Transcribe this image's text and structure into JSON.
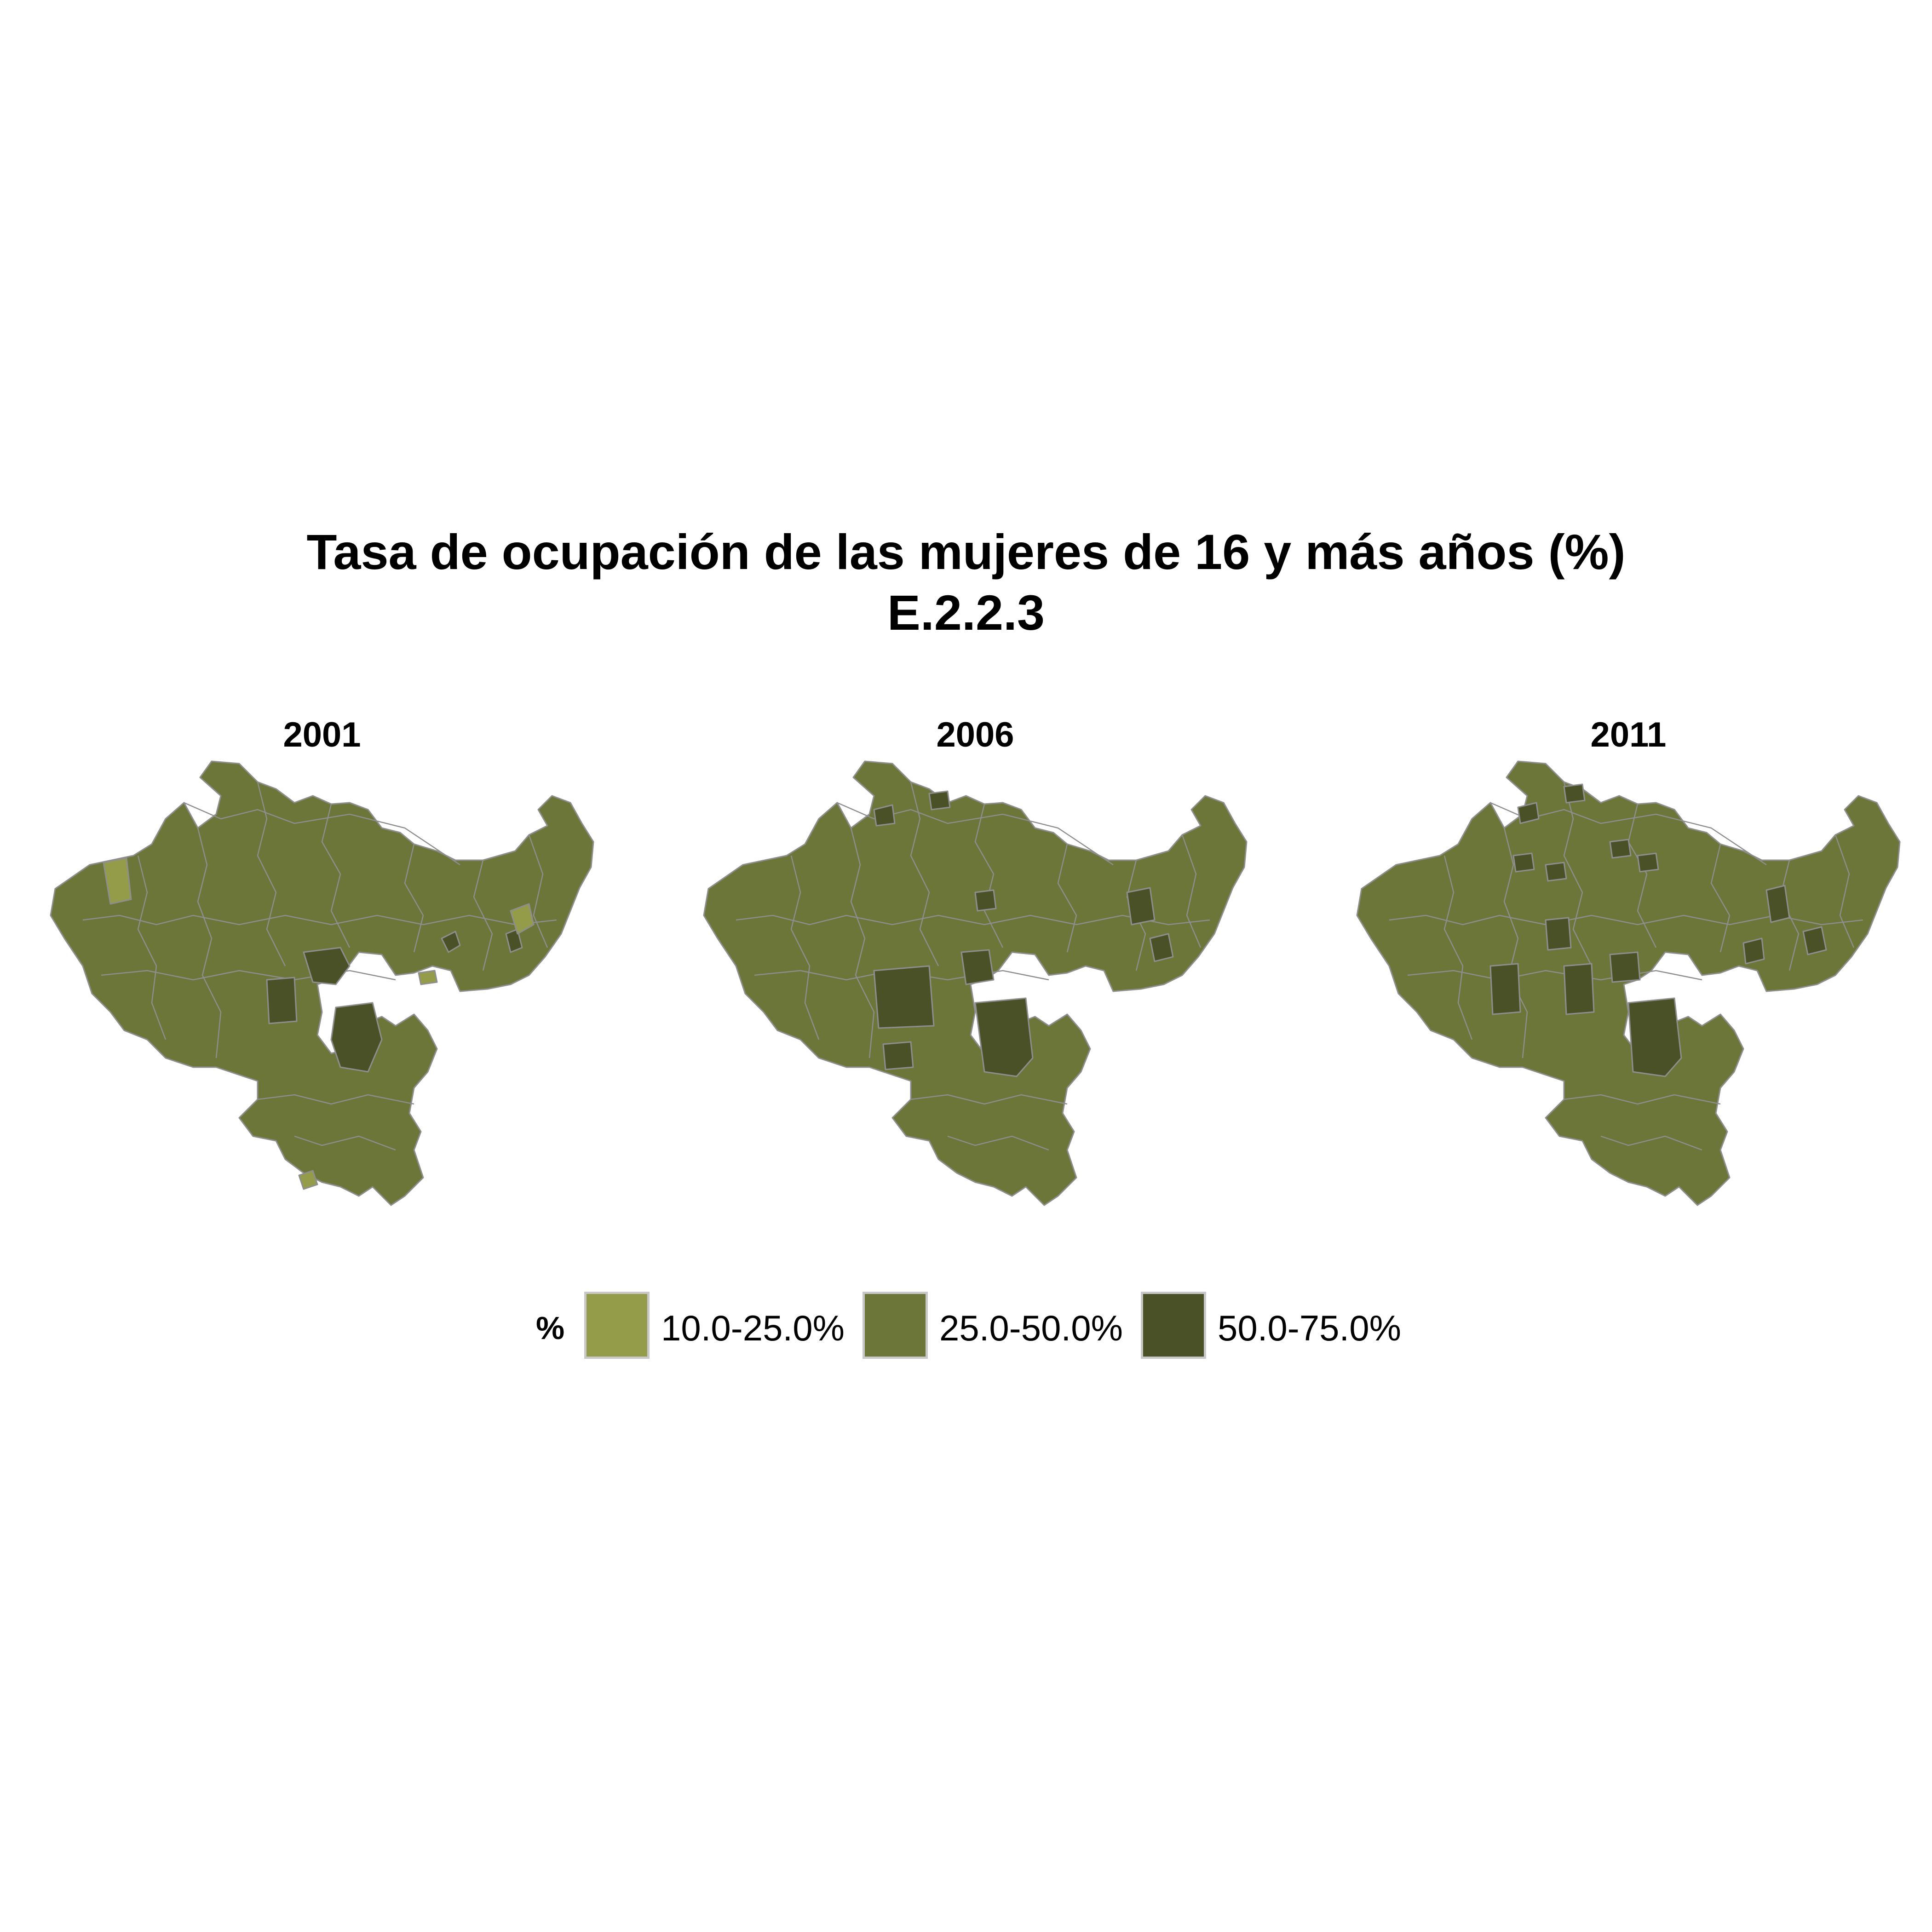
{
  "title": "Tasa de ocupación de las mujeres de 16 y más años (%)",
  "subtitle": "E.2.2.3",
  "legend": {
    "title": "%",
    "items": [
      {
        "label": "10.0-25.0%",
        "color": "#949c49"
      },
      {
        "label": "25.0-50.0%",
        "color": "#6c7638"
      },
      {
        "label": "50.0-75.0%",
        "color": "#4a5127"
      }
    ]
  },
  "colors": {
    "boundary": "#8e8e8e",
    "background": "#ffffff"
  },
  "facets": [
    {
      "year": "2001",
      "low_class_areas": 4,
      "high_class_areas": 5
    },
    {
      "year": "2006",
      "low_class_areas": 0,
      "high_class_areas": 9
    },
    {
      "year": "2011",
      "low_class_areas": 0,
      "high_class_areas": 14
    }
  ]
}
